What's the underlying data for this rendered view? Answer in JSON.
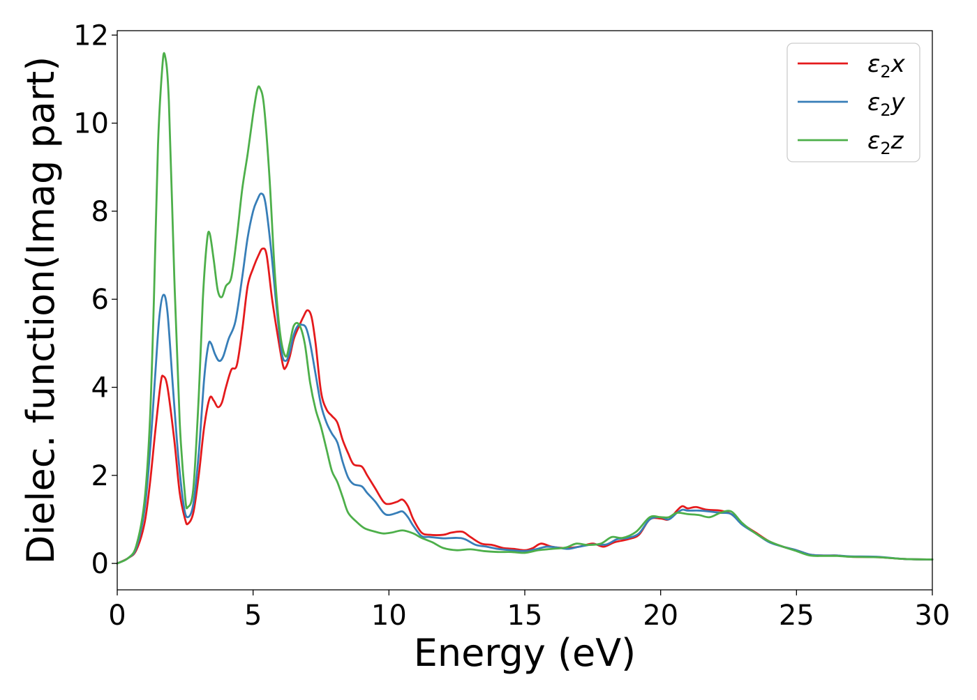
{
  "chart_data": {
    "type": "line",
    "xlabel": "Energy (eV)",
    "ylabel": "Dielec. function(Imag part)",
    "xlim": [
      0,
      30
    ],
    "ylim": [
      -0.6,
      12.1
    ],
    "x_ticks": [
      0,
      5,
      10,
      15,
      20,
      25,
      30
    ],
    "y_ticks": [
      0,
      2,
      4,
      6,
      8,
      10,
      12
    ],
    "grid": false,
    "legend_position": "top-right",
    "series": [
      {
        "name": "ε₂x",
        "legend_base": "ε",
        "legend_sub": "2",
        "legend_suffix": "x",
        "color": "#e41a1c",
        "points": [
          [
            0,
            0
          ],
          [
            0.4,
            0.12
          ],
          [
            0.7,
            0.3
          ],
          [
            1.0,
            0.9
          ],
          [
            1.2,
            1.8
          ],
          [
            1.4,
            3.0
          ],
          [
            1.6,
            4.1
          ],
          [
            1.7,
            4.25
          ],
          [
            1.85,
            4.0
          ],
          [
            2.1,
            2.8
          ],
          [
            2.3,
            1.6
          ],
          [
            2.5,
            1.0
          ],
          [
            2.6,
            0.9
          ],
          [
            2.8,
            1.15
          ],
          [
            3.0,
            2.0
          ],
          [
            3.2,
            3.1
          ],
          [
            3.4,
            3.75
          ],
          [
            3.55,
            3.7
          ],
          [
            3.7,
            3.55
          ],
          [
            3.85,
            3.65
          ],
          [
            4.0,
            4.0
          ],
          [
            4.2,
            4.4
          ],
          [
            4.4,
            4.5
          ],
          [
            4.6,
            5.3
          ],
          [
            4.8,
            6.3
          ],
          [
            5.0,
            6.7
          ],
          [
            5.2,
            7.0
          ],
          [
            5.35,
            7.15
          ],
          [
            5.5,
            7.0
          ],
          [
            5.7,
            6.0
          ],
          [
            5.9,
            5.2
          ],
          [
            6.1,
            4.5
          ],
          [
            6.2,
            4.45
          ],
          [
            6.35,
            4.7
          ],
          [
            6.5,
            5.1
          ],
          [
            6.7,
            5.4
          ],
          [
            6.85,
            5.6
          ],
          [
            7.0,
            5.75
          ],
          [
            7.15,
            5.6
          ],
          [
            7.3,
            5.0
          ],
          [
            7.5,
            3.9
          ],
          [
            7.7,
            3.5
          ],
          [
            7.9,
            3.35
          ],
          [
            8.1,
            3.2
          ],
          [
            8.3,
            2.8
          ],
          [
            8.5,
            2.5
          ],
          [
            8.7,
            2.25
          ],
          [
            9.0,
            2.2
          ],
          [
            9.2,
            2.0
          ],
          [
            9.5,
            1.7
          ],
          [
            9.8,
            1.4
          ],
          [
            10.0,
            1.35
          ],
          [
            10.3,
            1.4
          ],
          [
            10.5,
            1.45
          ],
          [
            10.7,
            1.3
          ],
          [
            10.9,
            1.0
          ],
          [
            11.2,
            0.7
          ],
          [
            11.5,
            0.65
          ],
          [
            12.0,
            0.65
          ],
          [
            12.3,
            0.7
          ],
          [
            12.7,
            0.72
          ],
          [
            13.0,
            0.6
          ],
          [
            13.4,
            0.45
          ],
          [
            13.8,
            0.42
          ],
          [
            14.2,
            0.35
          ],
          [
            14.6,
            0.33
          ],
          [
            15.0,
            0.3
          ],
          [
            15.3,
            0.35
          ],
          [
            15.6,
            0.45
          ],
          [
            16.0,
            0.38
          ],
          [
            16.5,
            0.35
          ],
          [
            17.0,
            0.38
          ],
          [
            17.5,
            0.45
          ],
          [
            17.9,
            0.38
          ],
          [
            18.3,
            0.48
          ],
          [
            18.8,
            0.55
          ],
          [
            19.2,
            0.65
          ],
          [
            19.6,
            1.0
          ],
          [
            20.0,
            1.02
          ],
          [
            20.3,
            1.0
          ],
          [
            20.6,
            1.2
          ],
          [
            20.8,
            1.3
          ],
          [
            21.0,
            1.25
          ],
          [
            21.3,
            1.28
          ],
          [
            21.7,
            1.22
          ],
          [
            22.2,
            1.2
          ],
          [
            22.6,
            1.12
          ],
          [
            23.0,
            0.9
          ],
          [
            23.5,
            0.7
          ],
          [
            24.0,
            0.5
          ],
          [
            24.5,
            0.38
          ],
          [
            25.0,
            0.3
          ],
          [
            25.5,
            0.2
          ],
          [
            26.0,
            0.18
          ],
          [
            26.5,
            0.18
          ],
          [
            27.0,
            0.15
          ],
          [
            28.0,
            0.14
          ],
          [
            29.0,
            0.1
          ],
          [
            30.0,
            0.09
          ]
        ]
      },
      {
        "name": "ε₂y",
        "legend_base": "ε",
        "legend_sub": "2",
        "legend_suffix": "y",
        "color": "#377eb8",
        "points": [
          [
            0,
            0
          ],
          [
            0.4,
            0.12
          ],
          [
            0.7,
            0.35
          ],
          [
            1.0,
            1.2
          ],
          [
            1.2,
            2.5
          ],
          [
            1.4,
            4.3
          ],
          [
            1.55,
            5.6
          ],
          [
            1.7,
            6.1
          ],
          [
            1.85,
            5.7
          ],
          [
            2.05,
            4.0
          ],
          [
            2.25,
            2.4
          ],
          [
            2.45,
            1.3
          ],
          [
            2.6,
            1.05
          ],
          [
            2.8,
            1.35
          ],
          [
            3.0,
            2.5
          ],
          [
            3.2,
            4.2
          ],
          [
            3.35,
            4.95
          ],
          [
            3.45,
            5.0
          ],
          [
            3.6,
            4.75
          ],
          [
            3.75,
            4.6
          ],
          [
            3.9,
            4.7
          ],
          [
            4.1,
            5.1
          ],
          [
            4.35,
            5.5
          ],
          [
            4.6,
            6.5
          ],
          [
            4.8,
            7.4
          ],
          [
            5.0,
            8.0
          ],
          [
            5.15,
            8.25
          ],
          [
            5.3,
            8.4
          ],
          [
            5.45,
            8.2
          ],
          [
            5.65,
            7.2
          ],
          [
            5.85,
            5.9
          ],
          [
            6.05,
            4.8
          ],
          [
            6.2,
            4.6
          ],
          [
            6.35,
            4.8
          ],
          [
            6.5,
            5.2
          ],
          [
            6.65,
            5.4
          ],
          [
            6.8,
            5.42
          ],
          [
            6.95,
            5.35
          ],
          [
            7.1,
            5.0
          ],
          [
            7.3,
            4.3
          ],
          [
            7.5,
            3.6
          ],
          [
            7.7,
            3.2
          ],
          [
            7.9,
            2.95
          ],
          [
            8.1,
            2.75
          ],
          [
            8.3,
            2.3
          ],
          [
            8.5,
            1.95
          ],
          [
            8.7,
            1.8
          ],
          [
            9.0,
            1.75
          ],
          [
            9.2,
            1.6
          ],
          [
            9.5,
            1.4
          ],
          [
            9.8,
            1.15
          ],
          [
            10.0,
            1.1
          ],
          [
            10.3,
            1.15
          ],
          [
            10.5,
            1.18
          ],
          [
            10.7,
            1.05
          ],
          [
            10.9,
            0.85
          ],
          [
            11.2,
            0.62
          ],
          [
            11.5,
            0.6
          ],
          [
            12.0,
            0.57
          ],
          [
            12.5,
            0.58
          ],
          [
            12.8,
            0.55
          ],
          [
            13.2,
            0.42
          ],
          [
            13.6,
            0.38
          ],
          [
            14.0,
            0.33
          ],
          [
            14.5,
            0.3
          ],
          [
            15.0,
            0.28
          ],
          [
            15.4,
            0.32
          ],
          [
            15.8,
            0.38
          ],
          [
            16.2,
            0.36
          ],
          [
            16.6,
            0.33
          ],
          [
            17.0,
            0.38
          ],
          [
            17.5,
            0.43
          ],
          [
            18.0,
            0.43
          ],
          [
            18.4,
            0.55
          ],
          [
            18.8,
            0.58
          ],
          [
            19.2,
            0.68
          ],
          [
            19.6,
            1.0
          ],
          [
            20.0,
            1.05
          ],
          [
            20.3,
            1.0
          ],
          [
            20.6,
            1.15
          ],
          [
            20.8,
            1.22
          ],
          [
            21.0,
            1.2
          ],
          [
            21.4,
            1.2
          ],
          [
            21.8,
            1.18
          ],
          [
            22.2,
            1.15
          ],
          [
            22.6,
            1.12
          ],
          [
            23.0,
            0.88
          ],
          [
            23.5,
            0.68
          ],
          [
            24.0,
            0.48
          ],
          [
            24.5,
            0.38
          ],
          [
            25.0,
            0.3
          ],
          [
            25.5,
            0.2
          ],
          [
            26.0,
            0.18
          ],
          [
            26.5,
            0.18
          ],
          [
            27.0,
            0.16
          ],
          [
            28.0,
            0.15
          ],
          [
            29.0,
            0.1
          ],
          [
            30.0,
            0.09
          ]
        ]
      },
      {
        "name": "ε₂z",
        "legend_base": "ε",
        "legend_sub": "2",
        "legend_suffix": "z",
        "color": "#4daf4a",
        "points": [
          [
            0,
            0
          ],
          [
            0.4,
            0.12
          ],
          [
            0.7,
            0.4
          ],
          [
            1.0,
            1.4
          ],
          [
            1.2,
            3.2
          ],
          [
            1.35,
            6.0
          ],
          [
            1.5,
            9.5
          ],
          [
            1.65,
            11.2
          ],
          [
            1.75,
            11.55
          ],
          [
            1.9,
            10.5
          ],
          [
            2.1,
            6.5
          ],
          [
            2.3,
            3.2
          ],
          [
            2.5,
            1.5
          ],
          [
            2.6,
            1.28
          ],
          [
            2.8,
            1.7
          ],
          [
            3.0,
            3.8
          ],
          [
            3.15,
            6.0
          ],
          [
            3.3,
            7.3
          ],
          [
            3.4,
            7.5
          ],
          [
            3.55,
            6.9
          ],
          [
            3.7,
            6.2
          ],
          [
            3.85,
            6.05
          ],
          [
            4.0,
            6.3
          ],
          [
            4.2,
            6.5
          ],
          [
            4.4,
            7.4
          ],
          [
            4.6,
            8.5
          ],
          [
            4.8,
            9.3
          ],
          [
            5.0,
            10.2
          ],
          [
            5.15,
            10.75
          ],
          [
            5.25,
            10.8
          ],
          [
            5.4,
            10.4
          ],
          [
            5.6,
            8.8
          ],
          [
            5.8,
            6.6
          ],
          [
            6.0,
            5.2
          ],
          [
            6.2,
            4.7
          ],
          [
            6.35,
            5.0
          ],
          [
            6.5,
            5.4
          ],
          [
            6.7,
            5.42
          ],
          [
            6.9,
            5.0
          ],
          [
            7.1,
            4.1
          ],
          [
            7.3,
            3.5
          ],
          [
            7.5,
            3.1
          ],
          [
            7.7,
            2.6
          ],
          [
            7.9,
            2.1
          ],
          [
            8.1,
            1.85
          ],
          [
            8.3,
            1.5
          ],
          [
            8.5,
            1.15
          ],
          [
            8.8,
            0.95
          ],
          [
            9.1,
            0.8
          ],
          [
            9.5,
            0.72
          ],
          [
            9.8,
            0.68
          ],
          [
            10.1,
            0.7
          ],
          [
            10.5,
            0.75
          ],
          [
            10.9,
            0.68
          ],
          [
            11.2,
            0.58
          ],
          [
            11.6,
            0.48
          ],
          [
            12.0,
            0.35
          ],
          [
            12.5,
            0.3
          ],
          [
            13.0,
            0.32
          ],
          [
            13.5,
            0.28
          ],
          [
            14.0,
            0.26
          ],
          [
            14.5,
            0.26
          ],
          [
            15.0,
            0.24
          ],
          [
            15.5,
            0.3
          ],
          [
            16.0,
            0.33
          ],
          [
            16.5,
            0.36
          ],
          [
            16.9,
            0.45
          ],
          [
            17.3,
            0.42
          ],
          [
            17.8,
            0.45
          ],
          [
            18.2,
            0.6
          ],
          [
            18.6,
            0.58
          ],
          [
            19.1,
            0.72
          ],
          [
            19.6,
            1.05
          ],
          [
            20.0,
            1.05
          ],
          [
            20.3,
            1.05
          ],
          [
            20.6,
            1.15
          ],
          [
            21.0,
            1.12
          ],
          [
            21.4,
            1.1
          ],
          [
            21.8,
            1.05
          ],
          [
            22.2,
            1.15
          ],
          [
            22.6,
            1.18
          ],
          [
            23.0,
            0.92
          ],
          [
            23.5,
            0.68
          ],
          [
            24.0,
            0.5
          ],
          [
            24.5,
            0.38
          ],
          [
            25.0,
            0.28
          ],
          [
            25.5,
            0.18
          ],
          [
            26.0,
            0.17
          ],
          [
            26.5,
            0.17
          ],
          [
            27.0,
            0.15
          ],
          [
            28.0,
            0.14
          ],
          [
            29.0,
            0.1
          ],
          [
            30.0,
            0.09
          ]
        ]
      }
    ]
  }
}
